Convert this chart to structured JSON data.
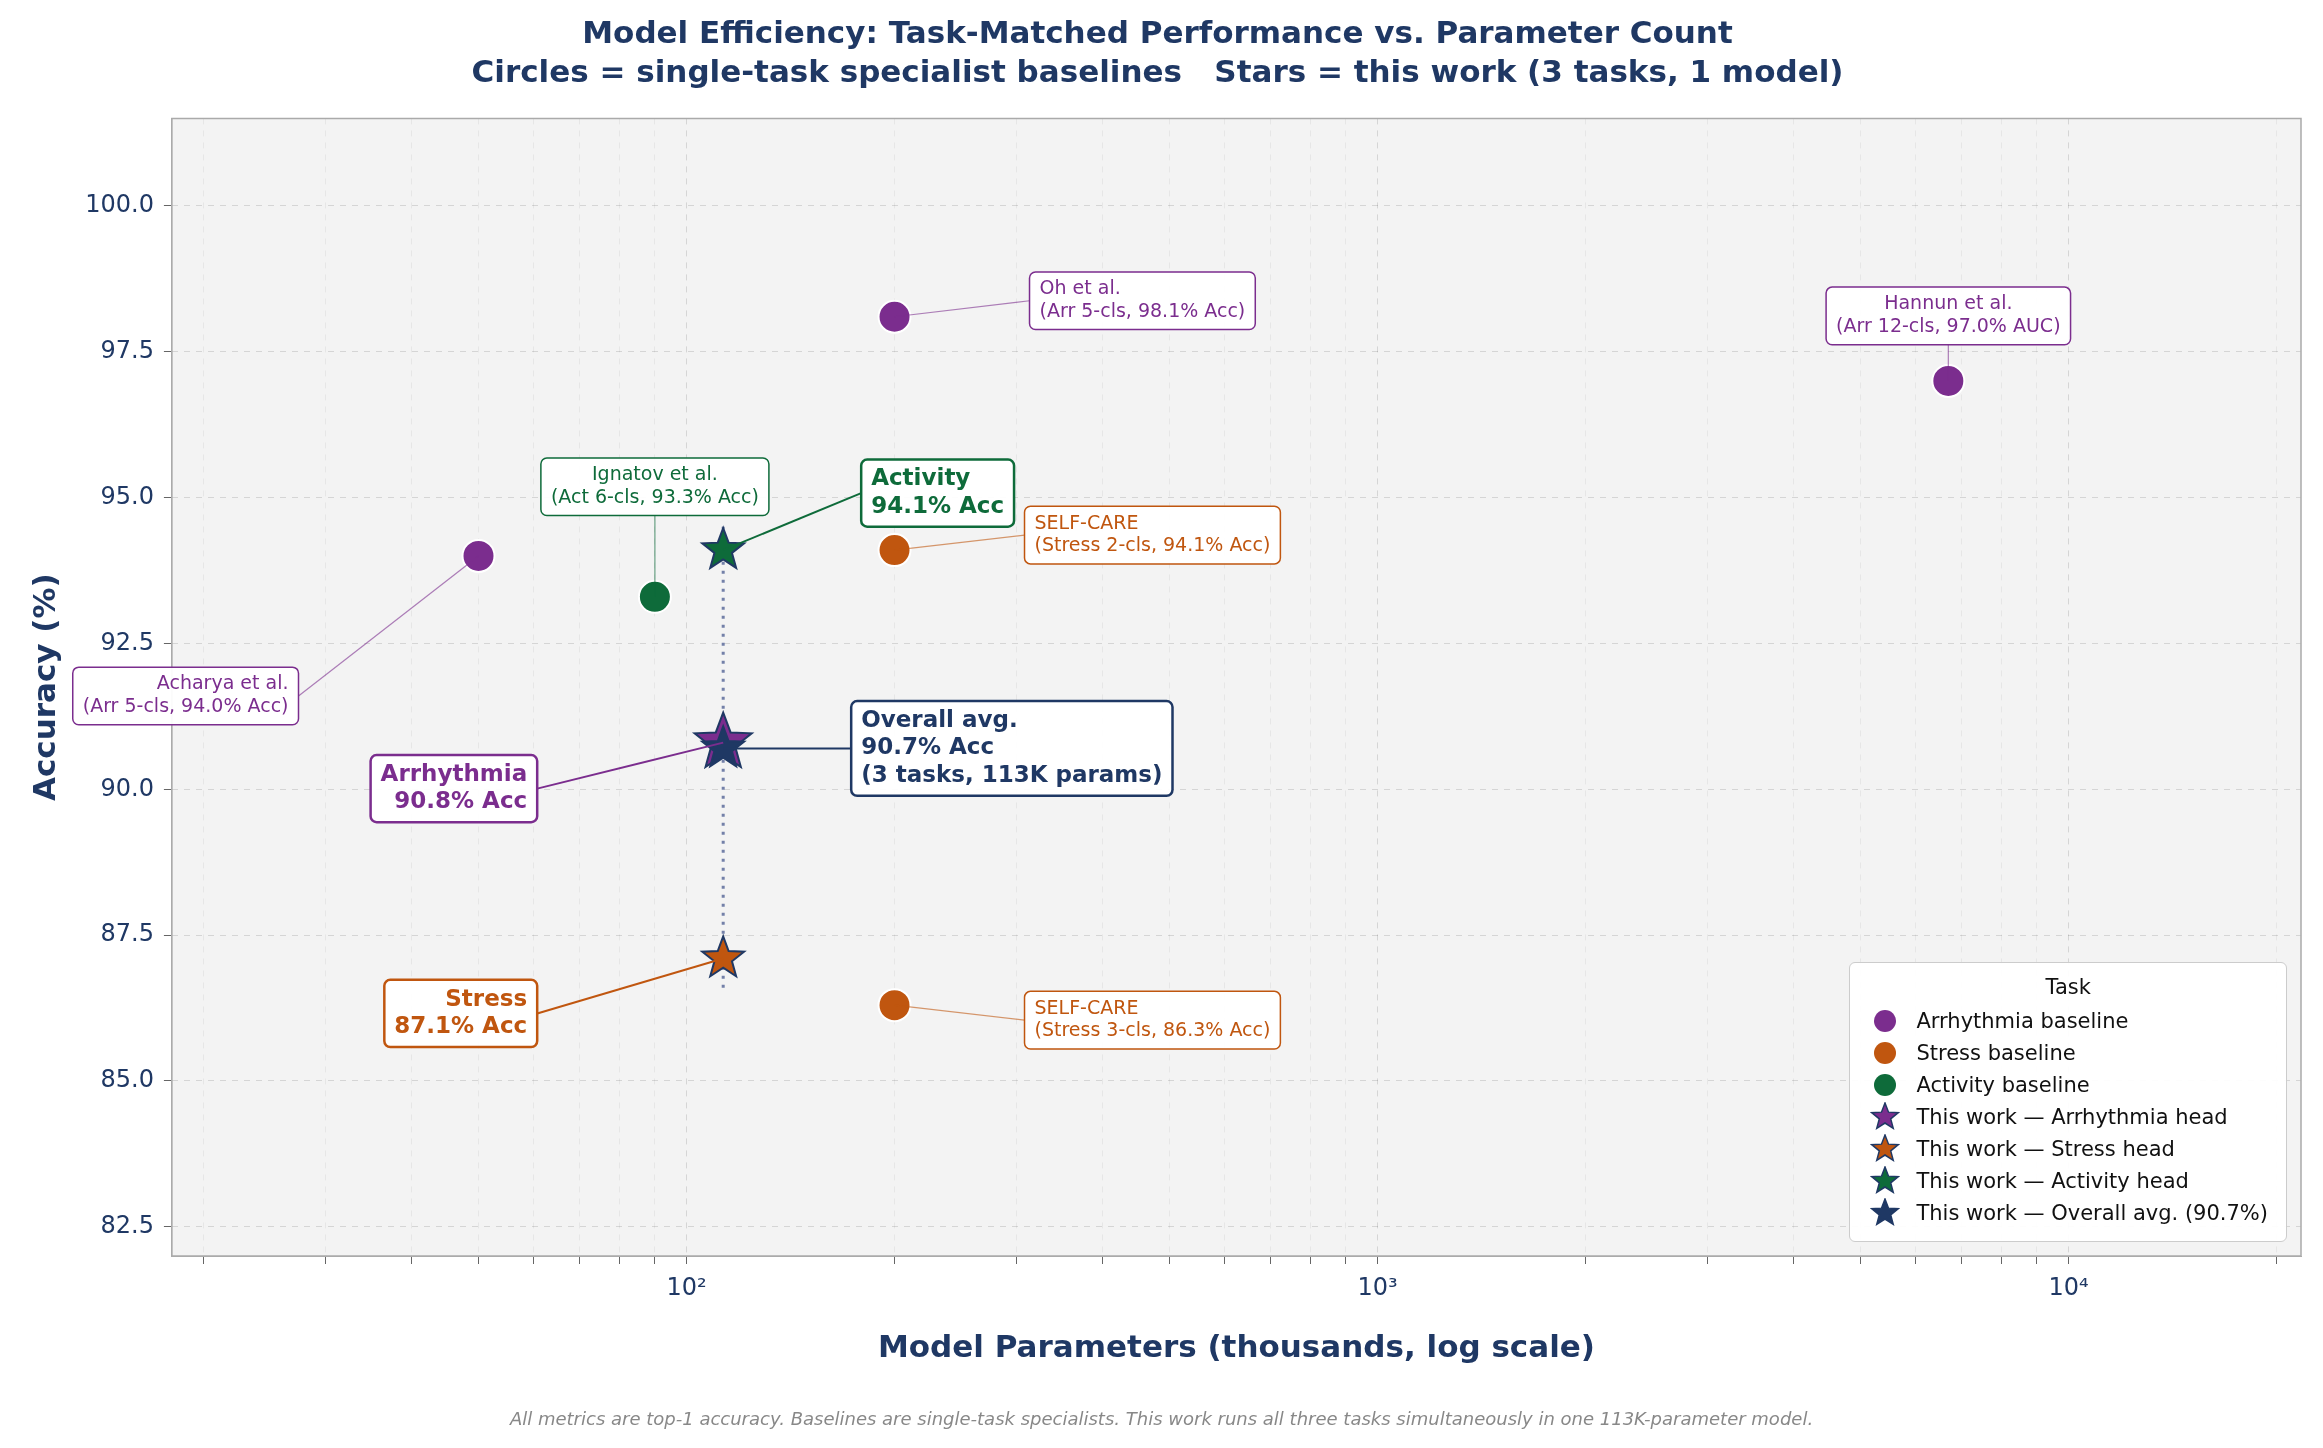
{
  "chart_data": {
    "type": "scatter",
    "title": "Model Efficiency: Task-Matched Performance vs. Parameter Count",
    "subtitle": "Circles = single-task specialist baselines   Stars = this work (3 tasks, 1 model)",
    "xlabel": "Model Parameters (thousands, log scale)",
    "ylabel": "Accuracy (%)",
    "legend_title": "Task",
    "log": "x",
    "grid": true,
    "legend": "bottom right",
    "xlim": [
      18,
      21700
    ],
    "ylim": [
      82.0,
      101.5
    ],
    "xticks": [
      {
        "value": 20,
        "label": null
      },
      {
        "value": 30,
        "label": null
      },
      {
        "value": 40,
        "label": null
      },
      {
        "value": 50,
        "label": null
      },
      {
        "value": 60,
        "label": null
      },
      {
        "value": 70,
        "label": null
      },
      {
        "value": 80,
        "label": null
      },
      {
        "value": 90,
        "label": null
      },
      {
        "value": 100,
        "label": "10²"
      },
      {
        "value": 200,
        "label": null
      },
      {
        "value": 300,
        "label": null
      },
      {
        "value": 400,
        "label": null
      },
      {
        "value": 500,
        "label": null
      },
      {
        "value": 600,
        "label": null
      },
      {
        "value": 700,
        "label": null
      },
      {
        "value": 800,
        "label": null
      },
      {
        "value": 900,
        "label": null
      },
      {
        "value": 1000,
        "label": "10³"
      },
      {
        "value": 2000,
        "label": null
      },
      {
        "value": 3000,
        "label": null
      },
      {
        "value": 4000,
        "label": null
      },
      {
        "value": 5000,
        "label": null
      },
      {
        "value": 6000,
        "label": null
      },
      {
        "value": 7000,
        "label": null
      },
      {
        "value": 8000,
        "label": null
      },
      {
        "value": 9000,
        "label": null
      },
      {
        "value": 10000,
        "label": "10⁴"
      },
      {
        "value": 20000,
        "label": null
      }
    ],
    "yticks": [
      {
        "value": 82.5,
        "label": "82.5"
      },
      {
        "value": 85,
        "label": "85.0"
      },
      {
        "value": 87.5,
        "label": "87.5"
      },
      {
        "value": 90,
        "label": "90.0"
      },
      {
        "value": 92.5,
        "label": "92.5"
      },
      {
        "value": 95,
        "label": "95.0"
      },
      {
        "value": 97.5,
        "label": "97.5"
      },
      {
        "value": 100,
        "label": "100.0"
      }
    ],
    "series": [
      {
        "type": "line",
        "color": "#7380a8",
        "x": [
          113,
          113
        ],
        "values": [
          86.6,
          94.5
        ],
        "marker": "none",
        "line_style": "dotted"
      },
      {
        "name": "Arrhythmia baseline",
        "color": "#7b2d8e",
        "marker": "circle",
        "x": [
          50,
          200,
          6700
        ],
        "values": [
          94.0,
          98.1,
          97.0
        ]
      },
      {
        "name": "Stress baseline",
        "color": "#c0560f",
        "marker": "circle",
        "x": [
          200,
          200
        ],
        "values": [
          94.1,
          86.3
        ]
      },
      {
        "name": "Activity baseline",
        "color": "#0e6b3a",
        "marker": "circle",
        "x": [
          90
        ],
        "values": [
          93.3
        ]
      },
      {
        "name": "This work — Arrhythmia head",
        "color": "#7b2d8e",
        "marker": "star",
        "x": [
          113
        ],
        "values": [
          90.8
        ]
      },
      {
        "name": "This work — Stress head",
        "color": "#c0560f",
        "marker": "star",
        "x": [
          113
        ],
        "values": [
          87.1
        ]
      },
      {
        "name": "This work — Activity head",
        "color": "#0e6b3a",
        "marker": "star",
        "x": [
          113
        ],
        "values": [
          94.1
        ]
      },
      {
        "name": "This work — Overall avg. (90.7%)",
        "color": "#1f3864",
        "marker": "star",
        "x": [
          113
        ],
        "values": [
          90.7
        ]
      }
    ],
    "annotations": [
      {
        "text": "Oh et al.\n(Arr 5-cls, 98.1% Acc)",
        "x": 200,
        "y": 98.1
      },
      {
        "text": "Hannun et al.\n(Arr 12-cls, 97.0% AUC)",
        "x": 6700,
        "y": 97.0
      },
      {
        "text": "Ignatov et al.\n(Act 6-cls, 93.3% Acc)",
        "x": 90,
        "y": 93.3
      },
      {
        "text": "SELF-CARE\n(Stress 2-cls, 94.1% Acc)",
        "x": 200,
        "y": 94.1
      },
      {
        "text": "Acharya et al.\n(Arr 5-cls, 94.0% Acc)",
        "x": 50,
        "y": 94.0
      },
      {
        "text": "SELF-CARE\n(Stress 3-cls, 86.3% Acc)",
        "x": 200,
        "y": 86.3
      },
      {
        "text": "Activity\n94.1% Acc",
        "x": 113,
        "y": 94.1
      },
      {
        "text": "Arrhythmia\n90.8% Acc",
        "x": 113,
        "y": 90.8
      },
      {
        "text": "Stress\n87.1% Acc",
        "x": 113,
        "y": 87.1
      },
      {
        "text": "Overall avg.\n90.7% Acc\n(3 tasks, 113K params)",
        "x": 113,
        "y": 90.7
      },
      "All metrics are top-1 accuracy. Baselines are single-task specialists. This work runs all three tasks simultaneously in one 113K-parameter model."
    ]
  }
}
